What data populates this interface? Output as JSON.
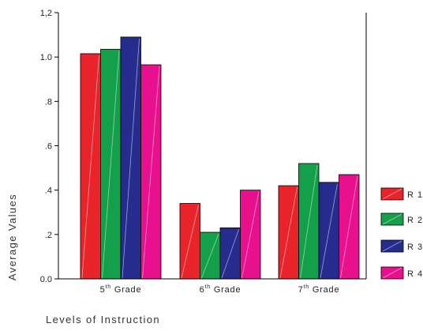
{
  "chart_data": {
    "type": "bar",
    "categories": [
      {
        "base": "5",
        "sup": "th",
        "rest": " Grade"
      },
      {
        "base": "6",
        "sup": "th",
        "rest": " Grade"
      },
      {
        "base": "7",
        "sup": "th",
        "rest": " Grade"
      }
    ],
    "series": [
      {
        "name": "R 1",
        "color": "#e8232a",
        "values": [
          1.015,
          0.34,
          0.42
        ]
      },
      {
        "name": "R 2",
        "color": "#14a04a",
        "values": [
          1.035,
          0.21,
          0.52
        ]
      },
      {
        "name": "R 3",
        "color": "#262c8e",
        "values": [
          1.09,
          0.23,
          0.435
        ]
      },
      {
        "name": "R 4",
        "color": "#e8108c",
        "values": [
          0.965,
          0.4,
          0.47
        ]
      }
    ],
    "ylim": [
      0,
      1.2
    ],
    "yticks": [
      {
        "value": 0,
        "label": "0.0"
      },
      {
        "value": 0.2,
        "label": ".2"
      },
      {
        "value": 0.4,
        "label": ".4"
      },
      {
        "value": 0.6,
        "label": ".6"
      },
      {
        "value": 0.8,
        "label": ".8"
      },
      {
        "value": 1.0,
        "label": "1.0"
      },
      {
        "value": 1.2,
        "label": "1,2"
      }
    ],
    "xlabel": "Levels of Instruction",
    "ylabel": "Average Values",
    "legend_position": "right",
    "grid": false
  }
}
